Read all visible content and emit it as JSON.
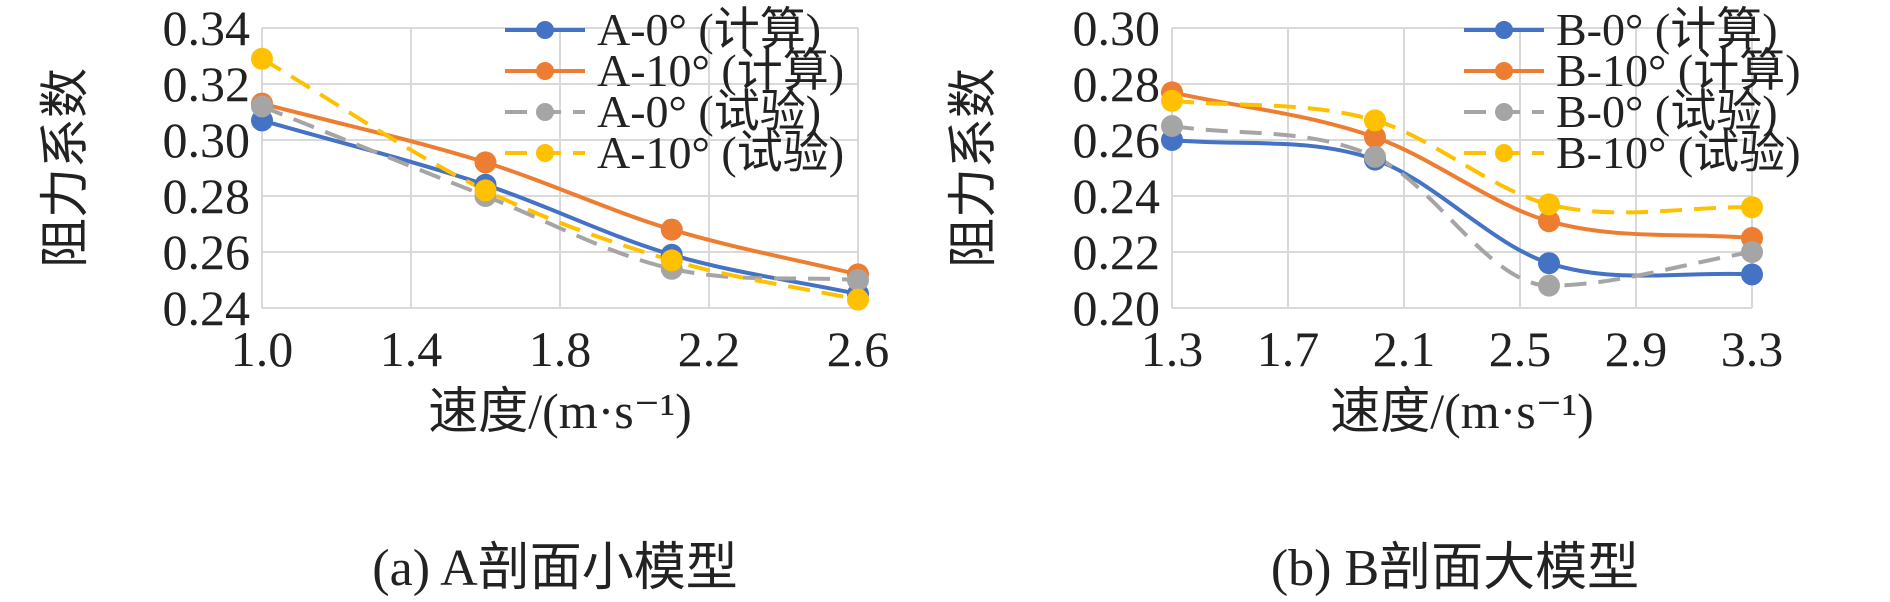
{
  "figure": {
    "captions": [
      "(a) A剖面小模型",
      "(b) B剖面大模型"
    ]
  },
  "chart_data": [
    {
      "type": "line",
      "xlabel": "速度/(m·s⁻¹)",
      "ylabel": "阻力系数",
      "xlim": [
        1.0,
        2.6
      ],
      "ylim": [
        0.24,
        0.34
      ],
      "xticks": [
        "1.0",
        "1.4",
        "1.8",
        "2.2",
        "2.6"
      ],
      "yticks": [
        "0.24",
        "0.26",
        "0.28",
        "0.30",
        "0.32",
        "0.34"
      ],
      "grid": true,
      "legend_position": "top-right",
      "x": [
        1.0,
        1.6,
        2.1,
        2.6
      ],
      "series": [
        {
          "name": "A-0° (计算)",
          "style": "solid",
          "color": "#4472C4",
          "values": [
            0.307,
            0.284,
            0.259,
            0.245
          ]
        },
        {
          "name": "A-10° (计算)",
          "style": "solid",
          "color": "#ED7D31",
          "values": [
            0.313,
            0.292,
            0.268,
            0.252
          ]
        },
        {
          "name": "A-0° (试验)",
          "style": "dashed",
          "color": "#A5A5A5",
          "values": [
            0.312,
            0.28,
            0.254,
            0.25
          ]
        },
        {
          "name": "A-10° (试验)",
          "style": "dashed",
          "color": "#FFC000",
          "values": [
            0.329,
            0.282,
            0.257,
            0.243
          ]
        }
      ]
    },
    {
      "type": "line",
      "xlabel": "速度/(m·s⁻¹)",
      "ylabel": "阻力系数",
      "xlim": [
        1.3,
        3.3
      ],
      "ylim": [
        0.2,
        0.3
      ],
      "xticks": [
        "1.3",
        "1.7",
        "2.1",
        "2.5",
        "2.9",
        "3.3"
      ],
      "yticks": [
        "0.20",
        "0.22",
        "0.24",
        "0.26",
        "0.28",
        "0.30"
      ],
      "grid": true,
      "legend_position": "top-right",
      "x": [
        1.3,
        2.0,
        2.6,
        3.3
      ],
      "series": [
        {
          "name": "B-0° (计算)",
          "style": "solid",
          "color": "#4472C4",
          "values": [
            0.26,
            0.253,
            0.216,
            0.212
          ]
        },
        {
          "name": "B-10° (计算)",
          "style": "solid",
          "color": "#ED7D31",
          "values": [
            0.277,
            0.261,
            0.231,
            0.225
          ]
        },
        {
          "name": "B-0° (试验)",
          "style": "dashed",
          "color": "#A5A5A5",
          "values": [
            0.265,
            0.254,
            0.208,
            0.22
          ]
        },
        {
          "name": "B-10° (试验)",
          "style": "dashed",
          "color": "#FFC000",
          "values": [
            0.274,
            0.267,
            0.237,
            0.236
          ]
        }
      ]
    }
  ]
}
